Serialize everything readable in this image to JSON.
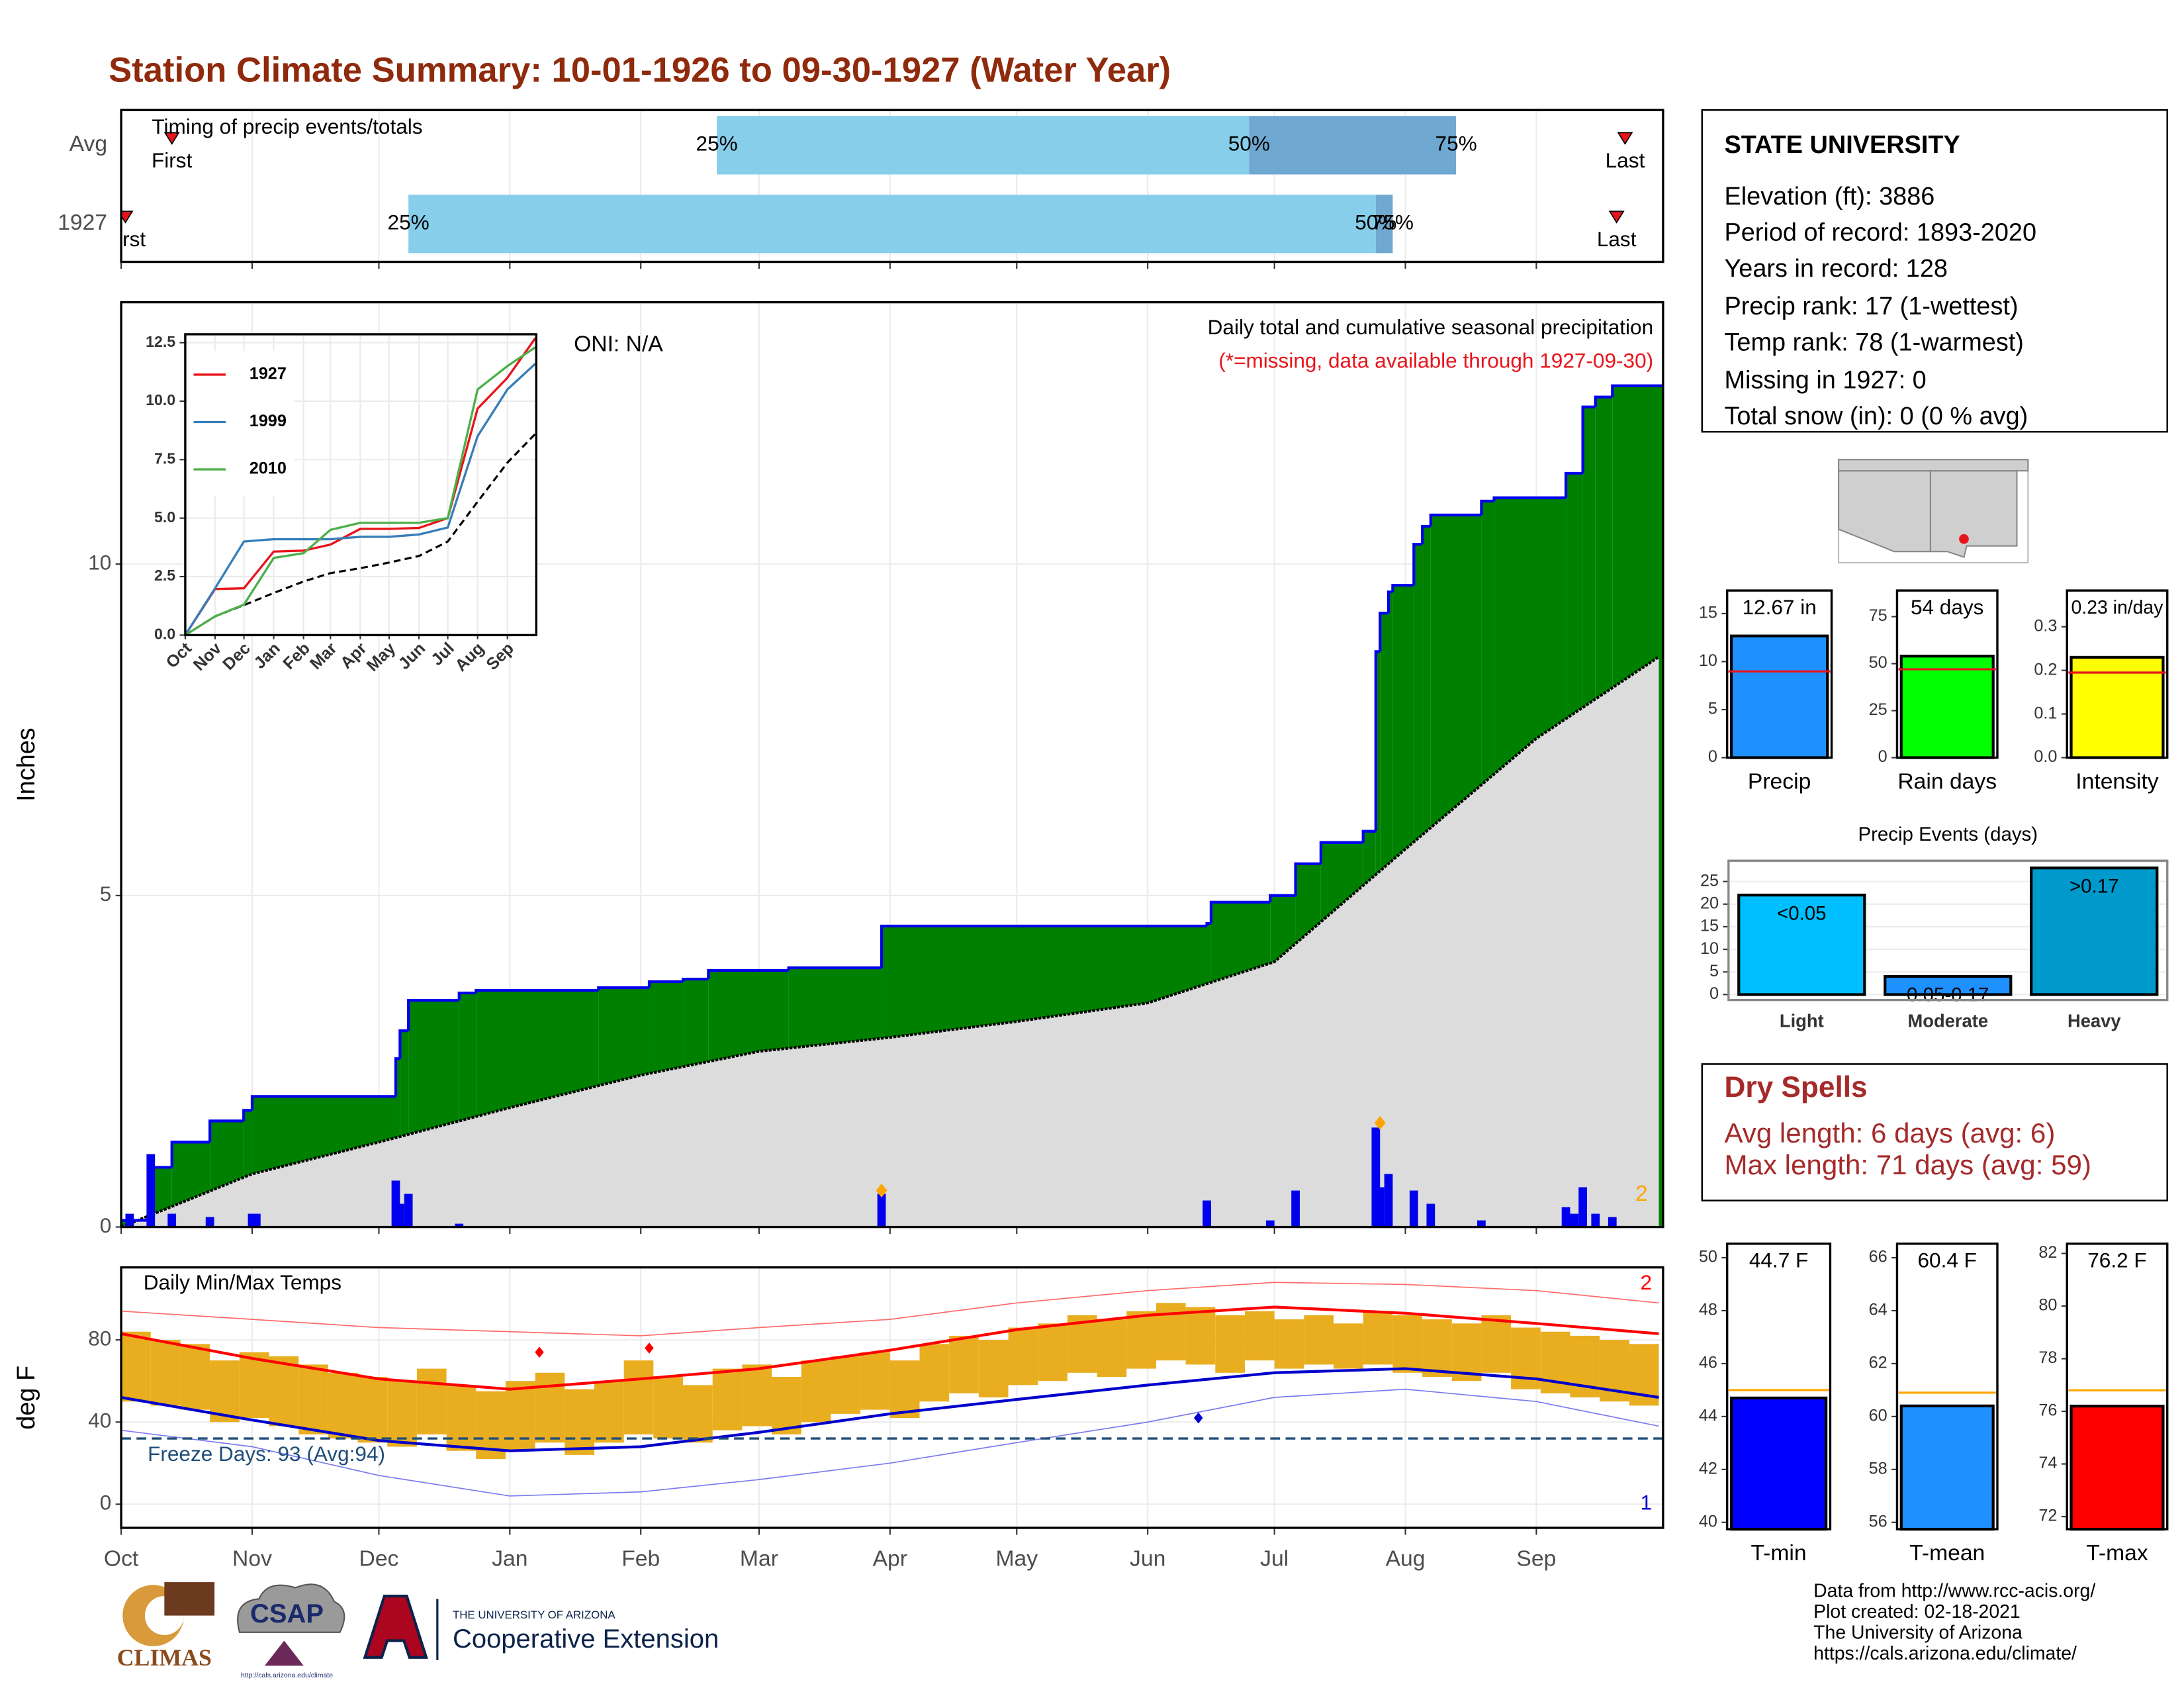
{
  "title": "Station Climate Summary: 10-01-1926 to 09-30-1927 (Water Year)",
  "chart_data": [
    {
      "type": "timing",
      "title": "Timing of precip events/totals",
      "categories": [
        "Avg",
        "1927"
      ],
      "xlim": [
        0,
        365
      ],
      "first": [
        12,
        1
      ],
      "p25": [
        141,
        68
      ],
      "p50": [
        267,
        297
      ],
      "p75": [
        316,
        301
      ],
      "last": [
        356,
        354
      ],
      "labels": {
        "first": "First",
        "p25": "25%",
        "p50": "50%",
        "p75": "75%",
        "last": "Last"
      },
      "colors": {
        "early": "#87ceeb",
        "late": "#6fa8d0",
        "marker": "#e8141b"
      }
    },
    {
      "type": "step-area",
      "y_label": "Inches",
      "xlim": [
        0,
        365
      ],
      "ylim": [
        0,
        13.95
      ],
      "yticks": [
        0,
        5,
        10
      ],
      "annotations": [
        "Daily total and cumulative seasonal precipitation",
        "(*=missing, data available through 1927-09-30)",
        "ONI: N/A",
        "2"
      ],
      "cumulative": {
        "color": "#008000",
        "line_color": "#0000ee",
        "x": [
          0,
          7,
          12,
          21,
          29,
          31,
          65,
          66,
          68,
          80,
          84,
          113,
          125,
          133,
          139,
          158,
          180,
          257,
          258,
          272,
          278,
          284,
          294,
          297,
          298,
          300,
          301,
          306,
          308,
          310,
          322,
          325,
          342,
          346,
          349,
          353
        ],
        "values": [
          0.1,
          0.9,
          1.28,
          1.6,
          1.76,
          1.97,
          2.54,
          2.96,
          3.42,
          3.53,
          3.57,
          3.61,
          3.7,
          3.74,
          3.87,
          3.91,
          4.54,
          4.58,
          4.9,
          5.0,
          5.48,
          5.8,
          5.97,
          8.68,
          9.26,
          9.58,
          9.68,
          10.3,
          10.57,
          10.74,
          10.95,
          11.0,
          11.37,
          12.37,
          12.52,
          12.69
        ]
      },
      "average": {
        "color": "#dcdcdc",
        "x": [
          0,
          31,
          61,
          92,
          123,
          151,
          182,
          212,
          243,
          273,
          304,
          335,
          364
        ],
        "values": [
          0,
          0.8,
          1.28,
          1.8,
          2.29,
          2.65,
          2.86,
          3.1,
          3.38,
          4.0,
          5.7,
          7.37,
          8.6
        ]
      },
      "daily": {
        "color": "#0000ee",
        "x": [
          2,
          7,
          12,
          21,
          31,
          32,
          65,
          66,
          68,
          80,
          180,
          257,
          272,
          278,
          297,
          298,
          300,
          306,
          310,
          322,
          342,
          344,
          346,
          349,
          353
        ],
        "values": [
          0.2,
          1.1,
          0.2,
          0.15,
          0.2,
          0.2,
          0.7,
          0.35,
          0.5,
          0.05,
          0.5,
          0.4,
          0.1,
          0.55,
          1.5,
          0.6,
          0.8,
          0.55,
          0.35,
          0.1,
          0.3,
          0.2,
          0.6,
          0.2,
          0.15
        ]
      },
      "markers": {
        "color": "#ffa500",
        "x": [
          180,
          298
        ],
        "values": [
          0.55,
          1.57
        ]
      }
    },
    {
      "type": "line",
      "xlim": [
        0,
        365
      ],
      "ylim": [
        0,
        12.86
      ],
      "yticks": [
        {
          "value": 0,
          "label": "0.0"
        },
        2.5,
        {
          "value": 5,
          "label": "5.0"
        },
        7.5,
        {
          "value": 10,
          "label": "10.0"
        },
        12.5
      ],
      "xticks": [
        {
          "value": 0,
          "label": "Oct"
        },
        {
          "value": 31,
          "label": "Nov"
        },
        {
          "value": 61,
          "label": "Dec"
        },
        {
          "value": 92,
          "label": "Jan"
        },
        {
          "value": 123,
          "label": "Feb"
        },
        {
          "value": 151,
          "label": "Mar"
        },
        {
          "value": 182,
          "label": "Apr"
        },
        {
          "value": 212,
          "label": "May"
        },
        {
          "value": 243,
          "label": "Jun"
        },
        {
          "value": 273,
          "label": "Jul"
        },
        {
          "value": 304,
          "label": "Aug"
        },
        {
          "value": 335,
          "label": "Sep"
        }
      ],
      "x": [
        0,
        31,
        61,
        92,
        123,
        151,
        182,
        212,
        243,
        273,
        304,
        335,
        364
      ],
      "series": [
        {
          "name": "1927",
          "color": "#e8141b",
          "values": [
            0,
            1.97,
            2.0,
            3.57,
            3.61,
            3.87,
            4.54,
            4.54,
            4.58,
            5.0,
            9.68,
            11.0,
            12.69
          ]
        },
        {
          "name": "1999",
          "color": "#377eb8",
          "values": [
            0,
            2.0,
            4.0,
            4.1,
            4.1,
            4.1,
            4.2,
            4.2,
            4.3,
            4.6,
            8.5,
            10.5,
            11.6
          ]
        },
        {
          "name": "2010",
          "color": "#4daf4a",
          "values": [
            0,
            0.8,
            1.3,
            3.3,
            3.5,
            4.5,
            4.8,
            4.8,
            4.8,
            5.0,
            10.5,
            11.5,
            12.3
          ]
        }
      ],
      "average": [
        0,
        0.8,
        1.28,
        1.8,
        2.29,
        2.65,
        2.86,
        3.1,
        3.38,
        4.0,
        5.7,
        7.37,
        8.6
      ]
    },
    {
      "type": "range-bar",
      "y_label": "deg F",
      "xlim": [
        0,
        365
      ],
      "ylim": [
        -11.5,
        115.3
      ],
      "yticks": [
        0,
        40,
        80
      ],
      "xticks": [
        {
          "value": 0,
          "label": "Oct"
        },
        {
          "value": 31,
          "label": "Nov"
        },
        {
          "value": 61,
          "label": "Dec"
        },
        {
          "value": 92,
          "label": "Jan"
        },
        {
          "value": 123,
          "label": "Feb"
        },
        {
          "value": 151,
          "label": "Mar"
        },
        {
          "value": 182,
          "label": "Apr"
        },
        {
          "value": 212,
          "label": "May"
        },
        {
          "value": 243,
          "label": "Jun"
        },
        {
          "value": 273,
          "label": "Jul"
        },
        {
          "value": 304,
          "label": "Aug"
        },
        {
          "value": 335,
          "label": "Sep"
        }
      ],
      "annotations": [
        "Daily Min/Max Temps",
        "Freeze Days: 93 (Avg:94)",
        "2",
        "1"
      ],
      "color": "#e9ae20",
      "x": [
        0,
        7,
        14,
        21,
        28,
        35,
        42,
        49,
        56,
        63,
        70,
        77,
        84,
        91,
        98,
        105,
        112,
        119,
        126,
        133,
        140,
        147,
        154,
        161,
        168,
        175,
        182,
        189,
        196,
        203,
        210,
        217,
        224,
        231,
        238,
        245,
        252,
        259,
        266,
        273,
        280,
        287,
        294,
        301,
        308,
        315,
        322,
        329,
        336,
        343,
        350,
        357
      ],
      "max": [
        84,
        80,
        78,
        70,
        74,
        72,
        68,
        64,
        62,
        60,
        66,
        58,
        55,
        60,
        64,
        56,
        60,
        70,
        62,
        58,
        66,
        68,
        62,
        70,
        72,
        74,
        70,
        78,
        82,
        80,
        86,
        88,
        92,
        90,
        94,
        98,
        96,
        92,
        94,
        90,
        92,
        88,
        94,
        92,
        90,
        88,
        92,
        86,
        84,
        82,
        80,
        78
      ],
      "min": [
        50,
        48,
        46,
        40,
        42,
        38,
        34,
        32,
        30,
        28,
        34,
        26,
        22,
        26,
        30,
        24,
        30,
        34,
        32,
        30,
        36,
        38,
        34,
        40,
        44,
        46,
        42,
        50,
        54,
        52,
        58,
        60,
        64,
        62,
        66,
        70,
        68,
        64,
        70,
        66,
        68,
        66,
        68,
        64,
        62,
        60,
        64,
        56,
        54,
        52,
        50,
        48
      ],
      "line_x": [
        0,
        31,
        61,
        92,
        123,
        151,
        182,
        212,
        243,
        273,
        304,
        335,
        364
      ],
      "avg_max": [
        83,
        71,
        61,
        56,
        61,
        66,
        75,
        85,
        92,
        96,
        93,
        88,
        83
      ],
      "avg_min": [
        52,
        41,
        31,
        26,
        28,
        35,
        44,
        51,
        58,
        64,
        66,
        61,
        52
      ],
      "record_max": [
        94,
        90,
        86,
        84,
        82,
        86,
        90,
        98,
        104,
        108,
        107,
        104,
        98
      ],
      "record_min": [
        36,
        28,
        14,
        4,
        6,
        12,
        20,
        30,
        40,
        52,
        56,
        50,
        38
      ],
      "freeze_line": 32,
      "record_high_markers": {
        "x": [
          99,
          125
        ],
        "values": [
          74,
          76
        ]
      },
      "record_low_markers": {
        "x": [
          255
        ],
        "values": [
          42
        ]
      }
    },
    {
      "type": "bar",
      "categories": [
        "Precip"
      ],
      "values": [
        12.67
      ],
      "value_labels": [
        "12.67 in"
      ],
      "average": 8.98,
      "color": "#1e90ff",
      "average_color": "#e8141b",
      "ylim": [
        0,
        17.4
      ],
      "yticks": [
        0,
        5,
        10,
        15
      ]
    },
    {
      "type": "bar",
      "categories": [
        "Rain days"
      ],
      "values": [
        54
      ],
      "value_labels": [
        "54 days"
      ],
      "average": 47,
      "color": "#00ff00",
      "average_color": "#e8141b",
      "ylim": [
        0,
        88.9
      ],
      "yticks": [
        0,
        25,
        50,
        75
      ]
    },
    {
      "type": "bar",
      "categories": [
        "Intensity"
      ],
      "values": [
        0.23
      ],
      "value_labels": [
        "0.23 in/day"
      ],
      "average": 0.195,
      "color": "#ffff00",
      "average_color": "#e8141b",
      "ylim": [
        0,
        0.383
      ],
      "yticks": [
        {
          "value": 0,
          "label": "0.0"
        },
        0.1,
        0.2,
        0.3
      ]
    },
    {
      "type": "bar",
      "title": "Precip Events (days)",
      "categories": [
        "Light",
        "Moderate",
        "Heavy"
      ],
      "values": [
        22,
        4,
        28
      ],
      "bin_labels": [
        "<0.05",
        "0.05-0.17",
        ">0.17"
      ],
      "colors": [
        "#00bfff",
        "#1e90ff",
        "#0099cc"
      ],
      "ylim": [
        -1.2,
        29.6
      ],
      "yticks": [
        0,
        5,
        10,
        15,
        20,
        25
      ]
    },
    {
      "type": "bar",
      "categories": [
        "T-min"
      ],
      "values": [
        44.7
      ],
      "value_labels": [
        "44.7 F"
      ],
      "average": 45.0,
      "color": "#0000ff",
      "average_color": "#ffa500",
      "ylim": [
        39.74,
        50.53
      ],
      "yticks": [
        40,
        42,
        44,
        46,
        48,
        50
      ]
    },
    {
      "type": "bar",
      "categories": [
        "T-mean"
      ],
      "values": [
        60.4
      ],
      "value_labels": [
        "60.4 F"
      ],
      "average": 60.9,
      "color": "#1e90ff",
      "average_color": "#ffa500",
      "ylim": [
        55.74,
        66.53
      ],
      "yticks": [
        56,
        58,
        60,
        62,
        64,
        66
      ]
    },
    {
      "type": "bar",
      "categories": [
        "T-max"
      ],
      "values": [
        76.2
      ],
      "value_labels": [
        "76.2 F"
      ],
      "average": 76.8,
      "color": "#ff0000",
      "average_color": "#ffa500",
      "ylim": [
        71.52,
        82.37
      ],
      "yticks": [
        72,
        74,
        76,
        78,
        80,
        82
      ]
    }
  ],
  "station": {
    "name": "STATE UNIVERSITY",
    "lines": [
      "Elevation (ft): 3886",
      "Period of record: 1893-2020",
      "Years in record: 128",
      "Precip rank: 17 (1-wettest)",
      "Temp rank: 78 (1-warmest)",
      "Missing in 1927: 0",
      "Total snow (in): 0 (0 % avg)"
    ]
  },
  "dry_spells": {
    "title": "Dry Spells",
    "lines": [
      "Avg length: 6 days (avg: 6)",
      "Max length: 71 days (avg: 59)"
    ]
  },
  "logos": {
    "climas": "CLIMAS",
    "csap": "CSAP",
    "csap_url": "http://cals.arizona.edu/climate",
    "ua": "THE UNIVERSITY OF ARIZONA",
    "extension": "Cooperative Extension"
  },
  "credits": [
    "Data from http://www.rcc-acis.org/",
    "Plot created: 02-18-2021",
    "The University of Arizona",
    "https://cals.arizona.edu/climate/"
  ]
}
